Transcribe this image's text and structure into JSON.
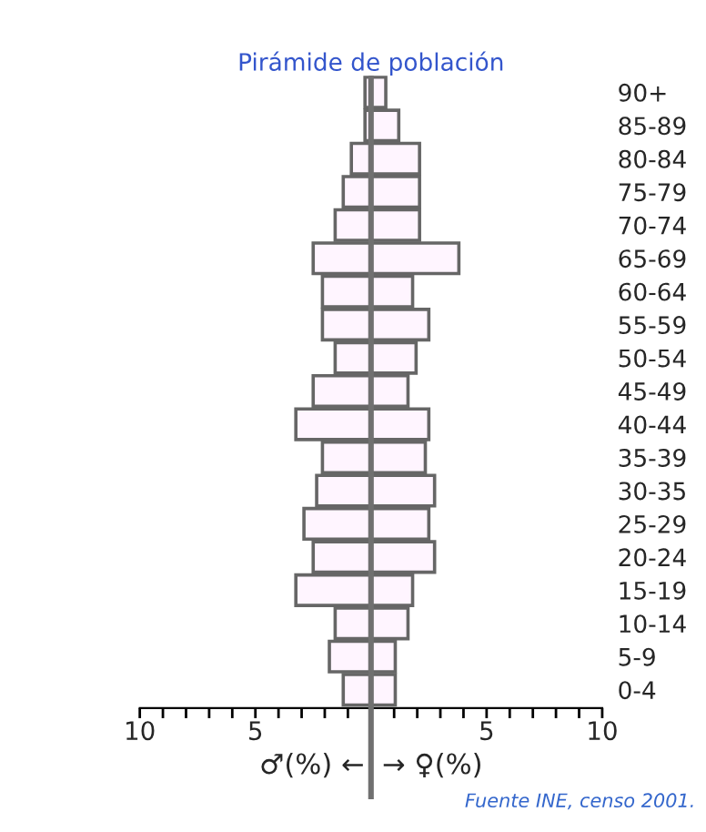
{
  "chart_data": {
    "type": "bar",
    "orientation": "horizontal",
    "stacked": true,
    "title": "Pirámide de población",
    "xlabel": "♂(%) ←  → ♀(%)",
    "categories": [
      "90+",
      "85-89",
      "80-84",
      "75-79",
      "70-74",
      "65-69",
      "60-64",
      "55-59",
      "50-54",
      "45-49",
      "40-44",
      "35-39",
      "30-35",
      "25-29",
      "20-24",
      "15-19",
      "10-14",
      "5-9",
      "0-4"
    ],
    "series": [
      {
        "color": "#fff5ff",
        "values": [
          -0.26,
          -0.26,
          -0.85,
          -1.2,
          -1.55,
          -2.5,
          -2.1,
          -2.1,
          -1.55,
          -2.5,
          -3.25,
          -2.1,
          -2.35,
          -2.9,
          -2.5,
          -3.25,
          -1.55,
          -1.8,
          -1.2
        ]
      },
      {
        "color": "#fff5ff",
        "values": [
          0.64,
          1.2,
          2.1,
          2.1,
          2.1,
          3.8,
          1.8,
          2.5,
          1.95,
          1.6,
          2.5,
          2.35,
          2.75,
          2.5,
          2.75,
          1.8,
          1.6,
          1.05,
          1.05
        ]
      }
    ],
    "xlim": [
      -10,
      10
    ],
    "xticks": [
      {
        "value": -10,
        "label": "10"
      },
      {
        "value": -9,
        "label": null
      },
      {
        "value": -8,
        "label": null
      },
      {
        "value": -7,
        "label": null
      },
      {
        "value": -6,
        "label": null
      },
      {
        "value": -5,
        "label": "5"
      },
      {
        "value": -4,
        "label": null
      },
      {
        "value": -3,
        "label": null
      },
      {
        "value": -2,
        "label": null
      },
      {
        "value": -1,
        "label": null
      },
      {
        "value": 1,
        "label": null
      },
      {
        "value": 2,
        "label": null
      },
      {
        "value": 3,
        "label": null
      },
      {
        "value": 4,
        "label": null
      },
      5,
      {
        "value": 6,
        "label": null
      },
      {
        "value": 7,
        "label": null
      },
      {
        "value": 8,
        "label": null
      },
      {
        "value": 9,
        "label": null
      },
      10
    ],
    "ref_lines": [
      {
        "axis": "x",
        "value": 0,
        "color": "#707070"
      }
    ],
    "annotations": [
      "Fuente INE, censo 2001."
    ],
    "grid": false,
    "legend": false
  }
}
